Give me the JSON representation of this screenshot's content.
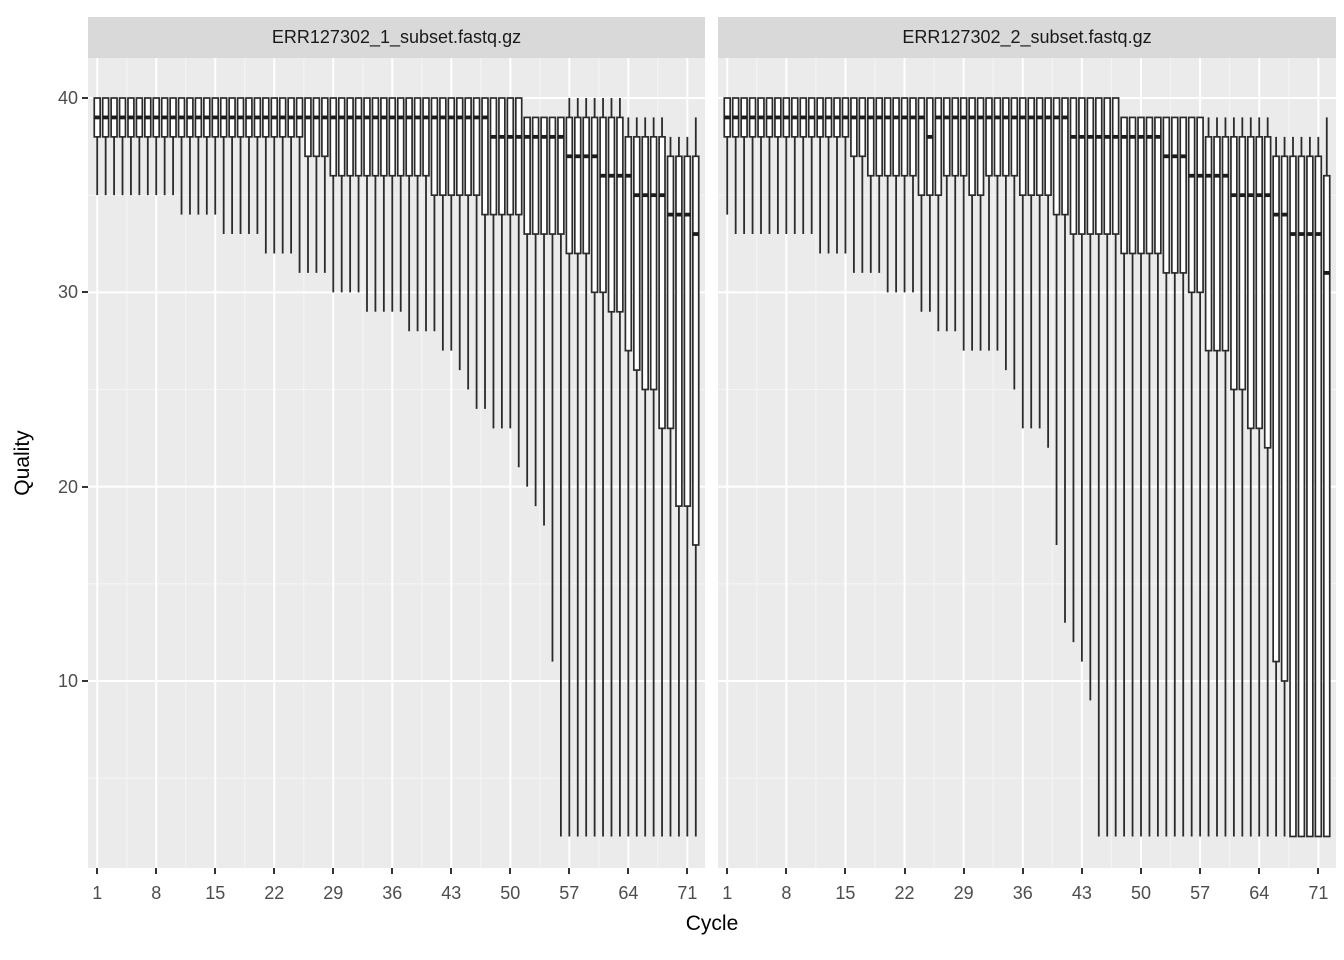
{
  "colors": {
    "panel_background": "#EBEBEB",
    "strip_background": "#D9D9D9",
    "grid_major": "#FFFFFF",
    "grid_minor": "#F5F5F5",
    "box_stroke": "#2B2B2B",
    "box_fill": "#FFFFFF",
    "median_stroke": "#1C1C1C",
    "axis_text": "#4D4D4D",
    "tick_mark": "#333333"
  },
  "chart_data": {
    "type": "boxplot",
    "faceted": true,
    "xlabel": "Cycle",
    "ylabel": "Quality",
    "x_ticks": [
      1,
      8,
      15,
      22,
      29,
      36,
      43,
      50,
      57,
      64,
      71
    ],
    "y_ticks": [
      10,
      20,
      30,
      40
    ],
    "y_minor_ticks": [
      5,
      15,
      25,
      35
    ],
    "cycles_per_facet": 72,
    "y_panel_range": [
      0.4,
      42.1
    ],
    "grid": true,
    "legend": "none",
    "facets": [
      {
        "label": "ERR127302_1_subset.fastq.gz",
        "lower_whisker": [
          35,
          35,
          35,
          35,
          35,
          35,
          35,
          35,
          35,
          35,
          34,
          34,
          34,
          34,
          34,
          33,
          33,
          33,
          33,
          33,
          32,
          32,
          32,
          32,
          31,
          31,
          31,
          31,
          30,
          30,
          30,
          30,
          29,
          29,
          29,
          29,
          29,
          28,
          28,
          28,
          28,
          27,
          27,
          26,
          25,
          24,
          24,
          23,
          23,
          23,
          21,
          20,
          19,
          18,
          11,
          2,
          2,
          2,
          2,
          2,
          2,
          2,
          2,
          2,
          2,
          2,
          2,
          2,
          2,
          2,
          2,
          2
        ],
        "q1": [
          38,
          38,
          38,
          38,
          38,
          38,
          38,
          38,
          38,
          38,
          38,
          38,
          38,
          38,
          38,
          38,
          38,
          38,
          38,
          38,
          38,
          38,
          38,
          38,
          38,
          37,
          37,
          37,
          36,
          36,
          36,
          36,
          36,
          36,
          36,
          36,
          36,
          36,
          36,
          36,
          35,
          35,
          35,
          35,
          35,
          35,
          34,
          34,
          34,
          34,
          34,
          33,
          33,
          33,
          33,
          33,
          32,
          32,
          32,
          30,
          30,
          29,
          29,
          27,
          26,
          25,
          25,
          23,
          23,
          19,
          19,
          17
        ],
        "median": [
          39,
          39,
          39,
          39,
          39,
          39,
          39,
          39,
          39,
          39,
          39,
          39,
          39,
          39,
          39,
          39,
          39,
          39,
          39,
          39,
          39,
          39,
          39,
          39,
          39,
          39,
          39,
          39,
          39,
          39,
          39,
          39,
          39,
          39,
          39,
          39,
          39,
          39,
          39,
          39,
          39,
          39,
          39,
          39,
          39,
          39,
          39,
          38,
          38,
          38,
          38,
          38,
          38,
          38,
          38,
          38,
          37,
          37,
          37,
          37,
          36,
          36,
          36,
          36,
          35,
          35,
          35,
          35,
          34,
          34,
          34,
          33
        ],
        "q3": [
          40,
          40,
          40,
          40,
          40,
          40,
          40,
          40,
          40,
          40,
          40,
          40,
          40,
          40,
          40,
          40,
          40,
          40,
          40,
          40,
          40,
          40,
          40,
          40,
          40,
          40,
          40,
          40,
          40,
          40,
          40,
          40,
          40,
          40,
          40,
          40,
          40,
          40,
          40,
          40,
          40,
          40,
          40,
          40,
          40,
          40,
          40,
          40,
          40,
          40,
          40,
          39,
          39,
          39,
          39,
          39,
          39,
          39,
          39,
          39,
          39,
          39,
          39,
          38,
          38,
          38,
          38,
          38,
          37,
          37,
          37,
          37
        ],
        "upper_whisker": [
          40,
          40,
          40,
          40,
          40,
          40,
          40,
          40,
          40,
          40,
          40,
          40,
          40,
          40,
          40,
          40,
          40,
          40,
          40,
          40,
          40,
          40,
          40,
          40,
          40,
          40,
          40,
          40,
          40,
          40,
          40,
          40,
          40,
          40,
          40,
          40,
          40,
          40,
          40,
          40,
          40,
          40,
          40,
          40,
          40,
          40,
          40,
          40,
          40,
          40,
          40,
          39,
          39,
          39,
          39,
          39,
          40,
          40,
          40,
          40,
          40,
          40,
          40,
          39,
          39,
          39,
          39,
          39,
          38,
          38,
          38,
          39
        ]
      },
      {
        "label": "ERR127302_2_subset.fastq.gz",
        "lower_whisker": [
          34,
          33,
          33,
          33,
          33,
          33,
          33,
          33,
          33,
          33,
          33,
          32,
          32,
          32,
          32,
          31,
          31,
          31,
          31,
          30,
          30,
          30,
          30,
          29,
          29,
          28,
          28,
          28,
          27,
          27,
          27,
          27,
          27,
          26,
          25,
          23,
          23,
          23,
          22,
          17,
          13,
          12,
          11,
          9,
          2,
          2,
          2,
          2,
          2,
          2,
          2,
          2,
          2,
          2,
          2,
          2,
          2,
          2,
          2,
          2,
          2,
          2,
          2,
          2,
          2,
          2,
          2,
          2,
          2,
          2,
          2,
          2
        ],
        "q1": [
          38,
          38,
          38,
          38,
          38,
          38,
          38,
          38,
          38,
          38,
          38,
          38,
          38,
          38,
          38,
          37,
          37,
          36,
          36,
          36,
          36,
          36,
          36,
          35,
          35,
          35,
          36,
          36,
          36,
          35,
          35,
          36,
          36,
          36,
          36,
          35,
          35,
          35,
          35,
          34,
          34,
          33,
          33,
          33,
          33,
          33,
          33,
          32,
          32,
          32,
          32,
          32,
          31,
          31,
          31,
          30,
          30,
          27,
          27,
          27,
          25,
          25,
          23,
          23,
          22,
          11,
          10,
          2,
          2,
          2,
          2,
          2
        ],
        "median": [
          39,
          39,
          39,
          39,
          39,
          39,
          39,
          39,
          39,
          39,
          39,
          39,
          39,
          39,
          39,
          39,
          39,
          39,
          39,
          39,
          39,
          39,
          39,
          39,
          38,
          39,
          39,
          39,
          39,
          39,
          39,
          39,
          39,
          39,
          39,
          39,
          39,
          39,
          39,
          39,
          39,
          38,
          38,
          38,
          38,
          38,
          38,
          38,
          38,
          38,
          38,
          38,
          37,
          37,
          37,
          36,
          36,
          36,
          36,
          36,
          35,
          35,
          35,
          35,
          35,
          34,
          34,
          33,
          33,
          33,
          33,
          31
        ],
        "q3": [
          40,
          40,
          40,
          40,
          40,
          40,
          40,
          40,
          40,
          40,
          40,
          40,
          40,
          40,
          40,
          40,
          40,
          40,
          40,
          40,
          40,
          40,
          40,
          40,
          40,
          40,
          40,
          40,
          40,
          40,
          40,
          40,
          40,
          40,
          40,
          40,
          40,
          40,
          40,
          40,
          40,
          40,
          40,
          40,
          40,
          40,
          40,
          39,
          39,
          39,
          39,
          39,
          39,
          39,
          39,
          39,
          39,
          38,
          38,
          38,
          38,
          38,
          38,
          38,
          38,
          37,
          37,
          37,
          37,
          37,
          37,
          36
        ],
        "upper_whisker": [
          40,
          40,
          40,
          40,
          40,
          40,
          40,
          40,
          40,
          40,
          40,
          40,
          40,
          40,
          40,
          40,
          40,
          40,
          40,
          40,
          40,
          40,
          40,
          40,
          40,
          40,
          40,
          40,
          40,
          40,
          40,
          40,
          40,
          40,
          40,
          40,
          40,
          40,
          40,
          40,
          40,
          40,
          40,
          40,
          40,
          40,
          40,
          39,
          39,
          39,
          39,
          39,
          39,
          39,
          39,
          39,
          39,
          39,
          39,
          39,
          39,
          39,
          39,
          39,
          39,
          38,
          38,
          38,
          38,
          38,
          38,
          39
        ]
      }
    ]
  }
}
